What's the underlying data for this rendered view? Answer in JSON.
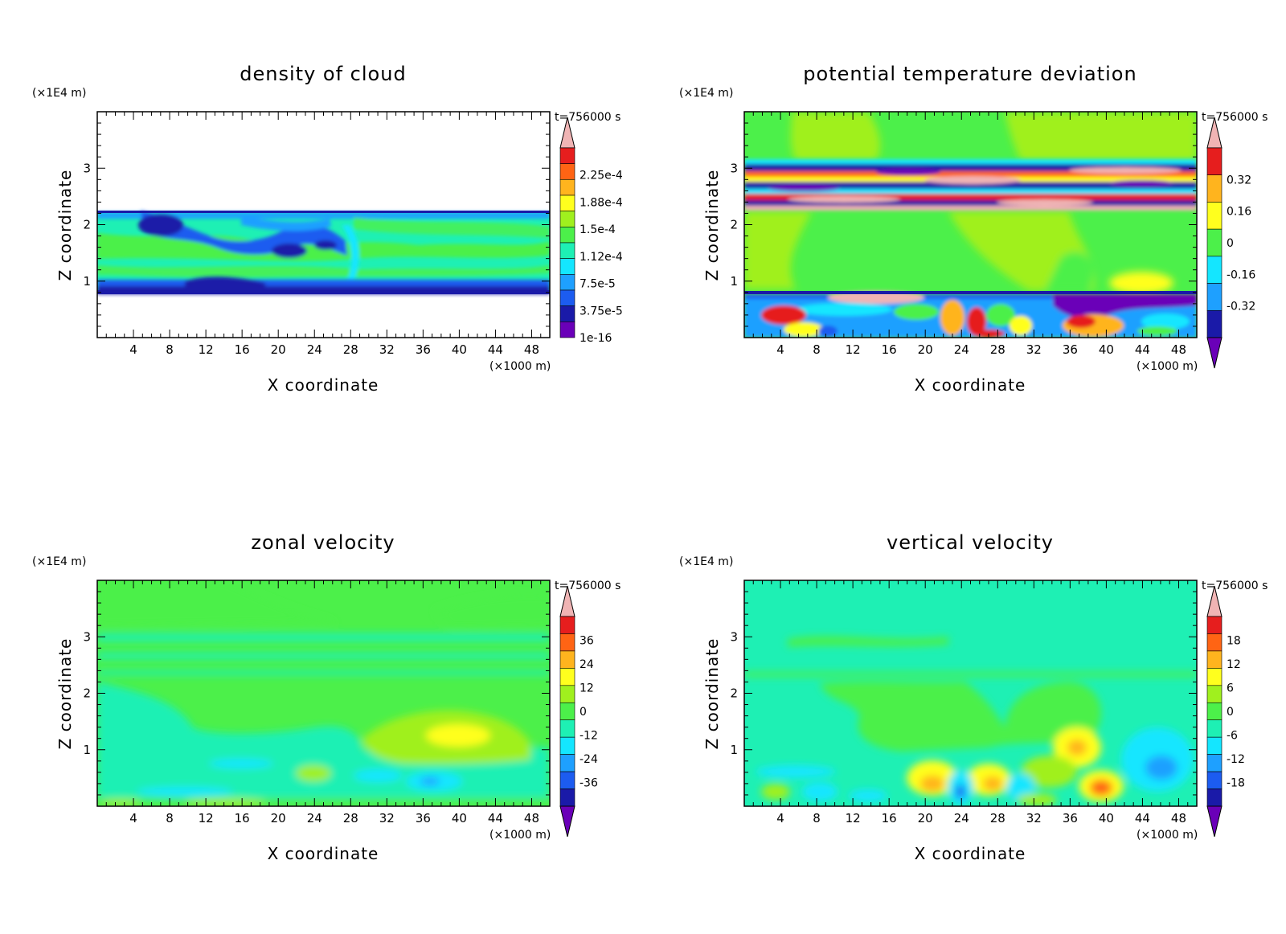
{
  "figure": {
    "common": {
      "ylabel": "Z coordinate",
      "xlabel": "X coordinate",
      "yunit": "(×1E4 m)",
      "xunit": "(×1000 m)",
      "time": "t=756000 s",
      "xticks": [
        "4",
        "8",
        "12",
        "16",
        "20",
        "24",
        "28",
        "32",
        "36",
        "40",
        "44",
        "48"
      ],
      "yticks": [
        "1",
        "2",
        "3"
      ]
    },
    "colors": {
      "purple": "#6a00b8",
      "navy": "#1a1aa8",
      "blue": "#1c5cf0",
      "lightblue": "#1ea0ff",
      "cyan": "#14e6ff",
      "aqua": "#1ef0b4",
      "green": "#4cf04a",
      "yellowgreen": "#a0f01e",
      "yellow": "#ffff1e",
      "orange": "#ffb41e",
      "darkorange": "#ff6414",
      "red": "#e61e1e",
      "pink": "#f0b4b4"
    }
  },
  "chart_data": [
    {
      "type": "heatmap",
      "title": "density of cloud",
      "xlabel": "X coordinate",
      "ylabel": "Z coordinate",
      "xlim": [
        0,
        50
      ],
      "ylim": [
        0,
        4
      ],
      "xticks": [
        4,
        8,
        12,
        16,
        20,
        24,
        28,
        32,
        36,
        40,
        44,
        48
      ],
      "yticks": [
        1,
        2,
        3
      ],
      "colorbar": {
        "labels": [
          "2.25e-4",
          "1.88e-4",
          "1.5e-4",
          "1.12e-4",
          "7.5e-5",
          "3.75e-5",
          "1e-16"
        ],
        "extend": "max"
      },
      "annotation": "t=756000 s",
      "cloud_layer_z": [
        0.8,
        2.2
      ]
    },
    {
      "type": "heatmap",
      "title": "potential temperature deviation",
      "xlabel": "X coordinate",
      "ylabel": "Z coordinate",
      "xlim": [
        0,
        50
      ],
      "ylim": [
        0,
        4
      ],
      "xticks": [
        4,
        8,
        12,
        16,
        20,
        24,
        28,
        32,
        36,
        40,
        44,
        48
      ],
      "yticks": [
        1,
        2,
        3
      ],
      "colorbar": {
        "labels": [
          "0.32",
          "0.16",
          "0",
          "-0.16",
          "-0.32"
        ],
        "extend": "both"
      },
      "annotation": "t=756000 s"
    },
    {
      "type": "heatmap",
      "title": "zonal velocity",
      "xlabel": "X coordinate",
      "ylabel": "Z coordinate",
      "xlim": [
        0,
        50
      ],
      "ylim": [
        0,
        4
      ],
      "xticks": [
        4,
        8,
        12,
        16,
        20,
        24,
        28,
        32,
        36,
        40,
        44,
        48
      ],
      "yticks": [
        1,
        2,
        3
      ],
      "colorbar": {
        "labels": [
          "36",
          "24",
          "12",
          "0",
          "-12",
          "-24",
          "-36"
        ],
        "extend": "both"
      },
      "annotation": "t=756000 s"
    },
    {
      "type": "heatmap",
      "title": "vertical velocity",
      "xlabel": "X coordinate",
      "ylabel": "Z coordinate",
      "xlim": [
        0,
        50
      ],
      "ylim": [
        0,
        4
      ],
      "xticks": [
        4,
        8,
        12,
        16,
        20,
        24,
        28,
        32,
        36,
        40,
        44,
        48
      ],
      "yticks": [
        1,
        2,
        3
      ],
      "colorbar": {
        "labels": [
          "18",
          "12",
          "6",
          "0",
          "-6",
          "-12",
          "-18"
        ],
        "extend": "both"
      },
      "annotation": "t=756000 s"
    }
  ]
}
